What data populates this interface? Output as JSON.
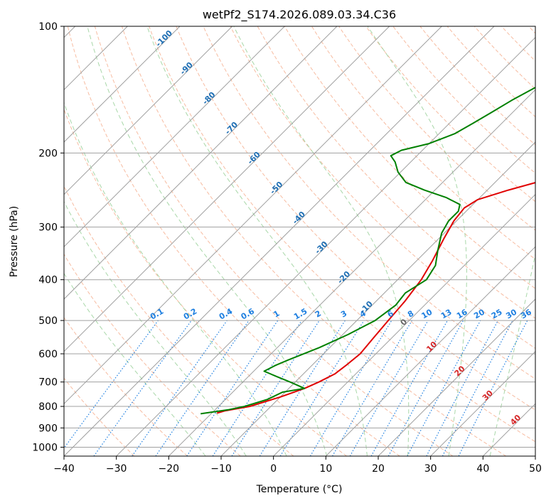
{
  "chart_data": {
    "type": "line",
    "title": "wetPf2_S174.2026.089.03.34.C36",
    "xlabel": "Temperature (°C)",
    "ylabel": "Pressure (hPa)",
    "xlim": [
      -40,
      50
    ],
    "ylim": [
      1050,
      100
    ],
    "y_scale": "log",
    "grid": true,
    "x_ticks": [
      -40,
      -30,
      -20,
      -10,
      0,
      10,
      20,
      30,
      40,
      50
    ],
    "y_ticks": [
      100,
      200,
      300,
      400,
      500,
      600,
      700,
      800,
      900,
      1000
    ],
    "skew": true,
    "colors": {
      "temperature": "#e00000",
      "dewpoint": "#008000",
      "isotherm": "#a0a0a0",
      "dry_adiabat": "#f4a582",
      "moist_adiabat": "#9fd39f",
      "mixing_ratio": "#1e7fe0"
    },
    "series": [
      {
        "name": "",
        "color": "#e00000",
        "points": [
          {
            "p": 830,
            "t": -19.0
          },
          {
            "p": 820,
            "t": -18.0
          },
          {
            "p": 800,
            "t": -14.0
          },
          {
            "p": 760,
            "t": -10.0
          },
          {
            "p": 725,
            "t": -7.0
          },
          {
            "p": 700,
            "t": -5.5
          },
          {
            "p": 670,
            "t": -4.0
          },
          {
            "p": 640,
            "t": -3.5
          },
          {
            "p": 600,
            "t": -3.0
          },
          {
            "p": 550,
            "t": -3.5
          },
          {
            "p": 500,
            "t": -4.0
          },
          {
            "p": 450,
            "t": -4.5
          },
          {
            "p": 400,
            "t": -5.5
          },
          {
            "p": 360,
            "t": -7.0
          },
          {
            "p": 320,
            "t": -9.0
          },
          {
            "p": 290,
            "t": -10.5
          },
          {
            "p": 270,
            "t": -11.0
          },
          {
            "p": 258,
            "t": -10.0
          },
          {
            "p": 245,
            "t": -6.0
          },
          {
            "p": 232,
            "t": -1.0
          },
          {
            "p": 218,
            "t": 4.0
          },
          {
            "p": 200,
            "t": 8.5
          },
          {
            "p": 180,
            "t": 12.0
          },
          {
            "p": 160,
            "t": 16.0
          },
          {
            "p": 150,
            "t": 18.0
          },
          {
            "p": 140,
            "t": 19.5
          },
          {
            "p": 130,
            "t": 21.5
          },
          {
            "p": 120,
            "t": 25.0
          },
          {
            "p": 110,
            "t": 28.0
          },
          {
            "p": 100,
            "t": 29.5
          }
        ]
      },
      {
        "name": "",
        "color": "#008000",
        "points": [
          {
            "p": 833,
            "t": -22.0
          },
          {
            "p": 825,
            "t": -20.0
          },
          {
            "p": 815,
            "t": -17.5
          },
          {
            "p": 800,
            "t": -15.0
          },
          {
            "p": 770,
            "t": -12.0
          },
          {
            "p": 740,
            "t": -10.5
          },
          {
            "p": 725,
            "t": -7.0
          },
          {
            "p": 700,
            "t": -11.0
          },
          {
            "p": 680,
            "t": -14.5
          },
          {
            "p": 660,
            "t": -18.0
          },
          {
            "p": 640,
            "t": -17.0
          },
          {
            "p": 620,
            "t": -15.5
          },
          {
            "p": 580,
            "t": -12.0
          },
          {
            "p": 540,
            "t": -9.0
          },
          {
            "p": 500,
            "t": -6.5
          },
          {
            "p": 460,
            "t": -5.5
          },
          {
            "p": 430,
            "t": -6.0
          },
          {
            "p": 400,
            "t": -4.5
          },
          {
            "p": 370,
            "t": -5.5
          },
          {
            "p": 340,
            "t": -8.0
          },
          {
            "p": 310,
            "t": -10.5
          },
          {
            "p": 290,
            "t": -11.5
          },
          {
            "p": 275,
            "t": -11.5
          },
          {
            "p": 265,
            "t": -12.5
          },
          {
            "p": 255,
            "t": -16.5
          },
          {
            "p": 245,
            "t": -22.0
          },
          {
            "p": 235,
            "t": -27.0
          },
          {
            "p": 222,
            "t": -30.5
          },
          {
            "p": 210,
            "t": -33.0
          },
          {
            "p": 203,
            "t": -35.0
          },
          {
            "p": 197,
            "t": -34.0
          },
          {
            "p": 190,
            "t": -30.0
          },
          {
            "p": 180,
            "t": -27.0
          },
          {
            "p": 170,
            "t": -25.5
          },
          {
            "p": 160,
            "t": -24.0
          },
          {
            "p": 150,
            "t": -22.5
          },
          {
            "p": 140,
            "t": -20.5
          },
          {
            "p": 130,
            "t": -17.5
          },
          {
            "p": 120,
            "t": -14.5
          },
          {
            "p": 110,
            "t": -12.0
          },
          {
            "p": 100,
            "t": -9.0
          }
        ]
      }
    ],
    "isotherm_labels": [
      -100,
      -90,
      -80,
      -70,
      -60,
      -50,
      -40,
      -30,
      -20,
      -10,
      0,
      10,
      20,
      30,
      40
    ],
    "mixing_ratio_labels": [
      "0.1",
      "0.2",
      "0.4",
      "0.6",
      "1",
      "1.5",
      "2",
      "3",
      "4",
      "6",
      "8",
      "10",
      "13",
      "16",
      "20",
      "25",
      "30",
      "36"
    ]
  }
}
